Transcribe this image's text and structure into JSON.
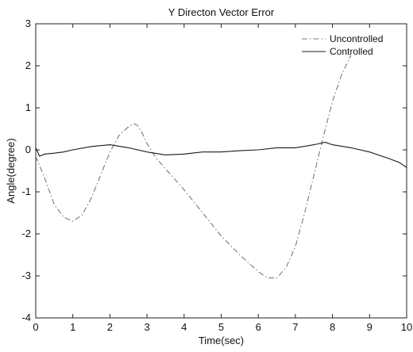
{
  "chart_data": {
    "type": "line",
    "title": "Y Directon Vector Error",
    "xlabel": "Time(sec)",
    "ylabel": "Angle(degree)",
    "xlim": [
      0,
      10
    ],
    "ylim": [
      -4,
      3
    ],
    "xticks": [
      0,
      1,
      2,
      3,
      4,
      5,
      6,
      7,
      8,
      9,
      10
    ],
    "yticks": [
      -4,
      -3,
      -2,
      -1,
      0,
      1,
      2,
      3
    ],
    "grid": false,
    "legend_position": "top-right",
    "series": [
      {
        "name": "Uncontrolled",
        "style": "dashdot",
        "color": "#7a7a7a",
        "x": [
          0,
          0.25,
          0.5,
          0.75,
          1.0,
          1.25,
          1.5,
          1.75,
          2.0,
          2.25,
          2.5,
          2.65,
          2.75,
          2.9,
          3.0,
          3.25,
          3.5,
          3.75,
          4.0,
          4.5,
          5.0,
          5.5,
          6.0,
          6.25,
          6.5,
          6.75,
          7.0,
          7.25,
          7.5,
          7.75,
          8.0,
          8.25,
          8.5
        ],
        "y": [
          -0.15,
          -0.7,
          -1.3,
          -1.6,
          -1.7,
          -1.55,
          -1.15,
          -0.6,
          -0.05,
          0.35,
          0.55,
          0.62,
          0.58,
          0.35,
          0.15,
          -0.2,
          -0.45,
          -0.7,
          -0.95,
          -1.5,
          -2.05,
          -2.5,
          -2.9,
          -3.05,
          -3.05,
          -2.8,
          -2.3,
          -1.5,
          -0.6,
          0.3,
          1.15,
          1.8,
          2.25
        ]
      },
      {
        "name": "Controlled",
        "style": "solid",
        "color": "#1a1a1a",
        "x": [
          0,
          0.1,
          0.25,
          0.5,
          0.75,
          1.0,
          1.5,
          2.0,
          2.5,
          3.0,
          3.5,
          4.0,
          4.5,
          5.0,
          5.5,
          6.0,
          6.5,
          7.0,
          7.5,
          7.8,
          8.0,
          8.5,
          9.0,
          9.5,
          9.8,
          10.0
        ],
        "y": [
          0.05,
          -0.15,
          -0.1,
          -0.08,
          -0.05,
          0.0,
          0.08,
          0.12,
          0.05,
          -0.05,
          -0.12,
          -0.1,
          -0.05,
          -0.05,
          -0.02,
          0.0,
          0.05,
          0.05,
          0.12,
          0.18,
          0.12,
          0.05,
          -0.05,
          -0.2,
          -0.3,
          -0.42
        ]
      }
    ]
  }
}
